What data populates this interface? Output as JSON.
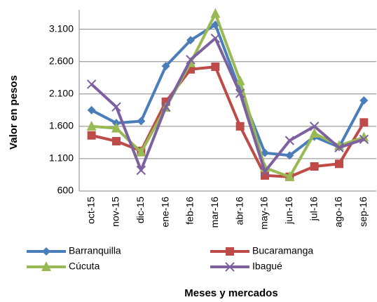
{
  "chart_data": {
    "type": "line",
    "y_label": "Valor en pesos",
    "x_label": "Meses  y mercados",
    "categories": [
      "oct-15",
      "nov-15",
      "dic-15",
      "ene-16",
      "feb-16",
      "mar-16",
      "abr-16",
      "may-16",
      "jun-16",
      "jul-16",
      "ago-16",
      "sep-16"
    ],
    "series": [
      {
        "name": "Barranquilla",
        "color": "#4a7ebb",
        "marker": "diamond",
        "values": [
          1850,
          1650,
          1680,
          2530,
          2930,
          3170,
          2150,
          1190,
          1150,
          1440,
          1280,
          2000
        ]
      },
      {
        "name": "Bucaramanga",
        "color": "#be4b48",
        "marker": "square",
        "values": [
          1460,
          1370,
          1220,
          1980,
          2480,
          2520,
          1600,
          840,
          820,
          980,
          1020,
          1660
        ]
      },
      {
        "name": "Cúcuta",
        "color": "#98b954",
        "marker": "triangle",
        "values": [
          1600,
          1570,
          1200,
          1890,
          2580,
          3340,
          2300,
          960,
          820,
          1490,
          1300,
          1430
        ]
      },
      {
        "name": "Ibagué",
        "color": "#7d60a0",
        "marker": "x",
        "values": [
          2250,
          1900,
          920,
          1900,
          2630,
          2960,
          2110,
          900,
          1380,
          1600,
          1270,
          1400
        ]
      }
    ],
    "ylim": [
      600,
      3400
    ],
    "yticks": [
      600,
      {
        "value": 1100,
        "label": "1.100"
      },
      {
        "value": 1600,
        "label": "1.600"
      },
      {
        "value": 2100,
        "label": "2.100"
      },
      {
        "value": 2600,
        "label": "2.600"
      },
      {
        "value": 3100,
        "label": "3.100"
      }
    ],
    "grid": true,
    "legend": "bottom"
  }
}
